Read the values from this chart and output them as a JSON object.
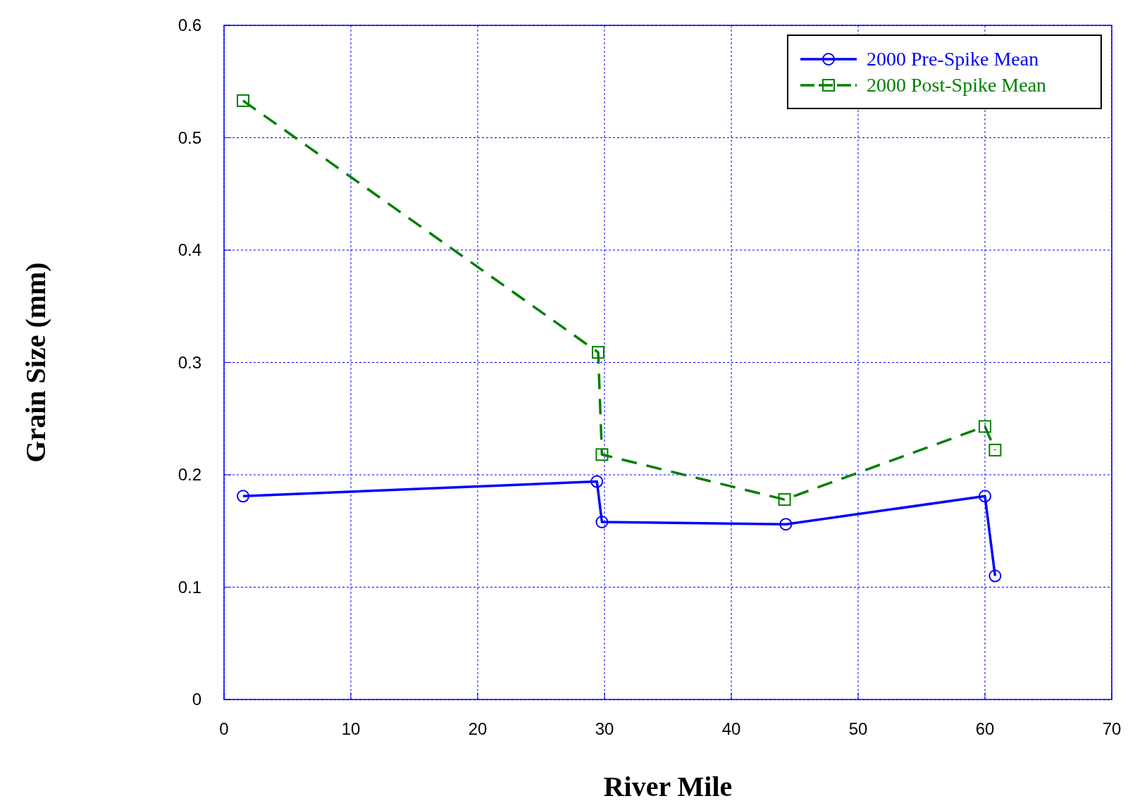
{
  "chart_data": {
    "type": "line",
    "xlabel": "River Mile",
    "ylabel": "Grain Size (mm)",
    "xlim": [
      0,
      70
    ],
    "xticks": [
      0,
      10,
      20,
      30,
      40,
      50,
      60,
      70
    ],
    "ylim": [
      0,
      0.6
    ],
    "yticks": [
      0,
      0.1,
      0.2,
      0.3,
      0.4,
      0.5,
      0.6
    ],
    "grid": true,
    "legend": "top right",
    "series": [
      {
        "name": "2000 Pre-Spike Mean",
        "color": "#0000ff",
        "marker": "circle",
        "line_style": "solid",
        "x": [
          1.5,
          29.4,
          29.8,
          44.3,
          60.0,
          60.8
        ],
        "values": [
          0.181,
          0.194,
          0.158,
          0.156,
          0.181,
          0.11
        ]
      },
      {
        "name": "2000 Post-Spike Mean",
        "color": "#008000",
        "marker": "square",
        "line_style": "dashed",
        "x": [
          1.5,
          29.5,
          29.8,
          44.2,
          60.0,
          60.8
        ],
        "values": [
          0.533,
          0.309,
          0.218,
          0.178,
          0.243,
          0.222
        ]
      }
    ]
  }
}
